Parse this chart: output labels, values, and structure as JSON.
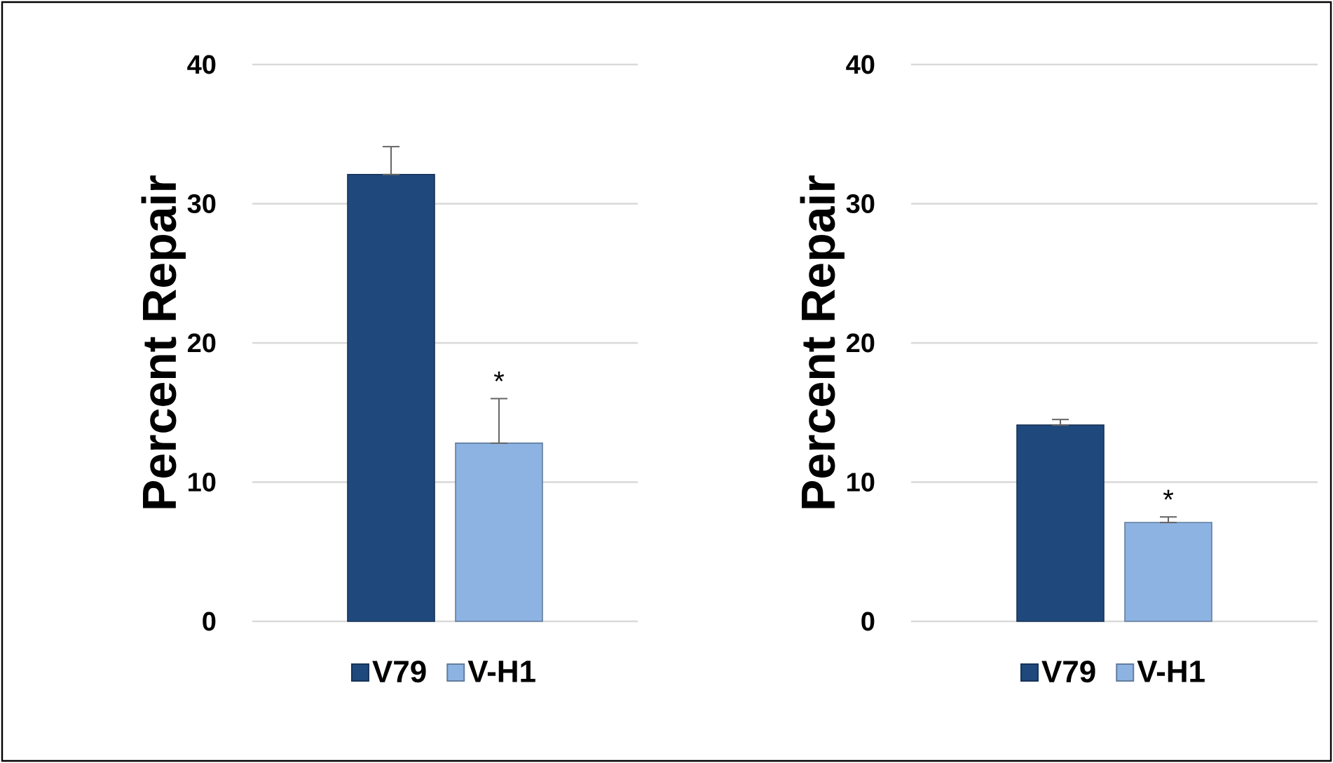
{
  "chart_data": [
    {
      "type": "bar",
      "ylabel": "Percent Repair",
      "categories": [
        null
      ],
      "ylim": [
        0,
        40
      ],
      "yticks": [
        0,
        10,
        20,
        30,
        40
      ],
      "grid": "y",
      "legend": "bottom",
      "annotations": [
        "*"
      ],
      "series": [
        {
          "name": "V79",
          "color": "#1f497d",
          "values": [
            32.1
          ],
          "errors": [
            [
              32.1,
              34.1
            ]
          ]
        },
        {
          "name": "V-H1",
          "color": "#8db3e2",
          "values": [
            12.8
          ],
          "errors": [
            [
              12.8,
              16.0
            ]
          ]
        }
      ]
    },
    {
      "type": "bar",
      "ylabel": "Percent Repair",
      "categories": [
        null
      ],
      "ylim": [
        0,
        40
      ],
      "yticks": [
        0,
        10,
        20,
        30,
        40
      ],
      "grid": "y",
      "legend": "bottom",
      "annotations": [
        "*"
      ],
      "series": [
        {
          "name": "V79",
          "color": "#1f497d",
          "values": [
            14.1
          ],
          "errors": [
            [
              14.1,
              14.5
            ]
          ]
        },
        {
          "name": "V-H1",
          "color": "#8db3e2",
          "values": [
            7.1
          ],
          "errors": [
            [
              7.1,
              7.5
            ]
          ]
        }
      ]
    }
  ]
}
